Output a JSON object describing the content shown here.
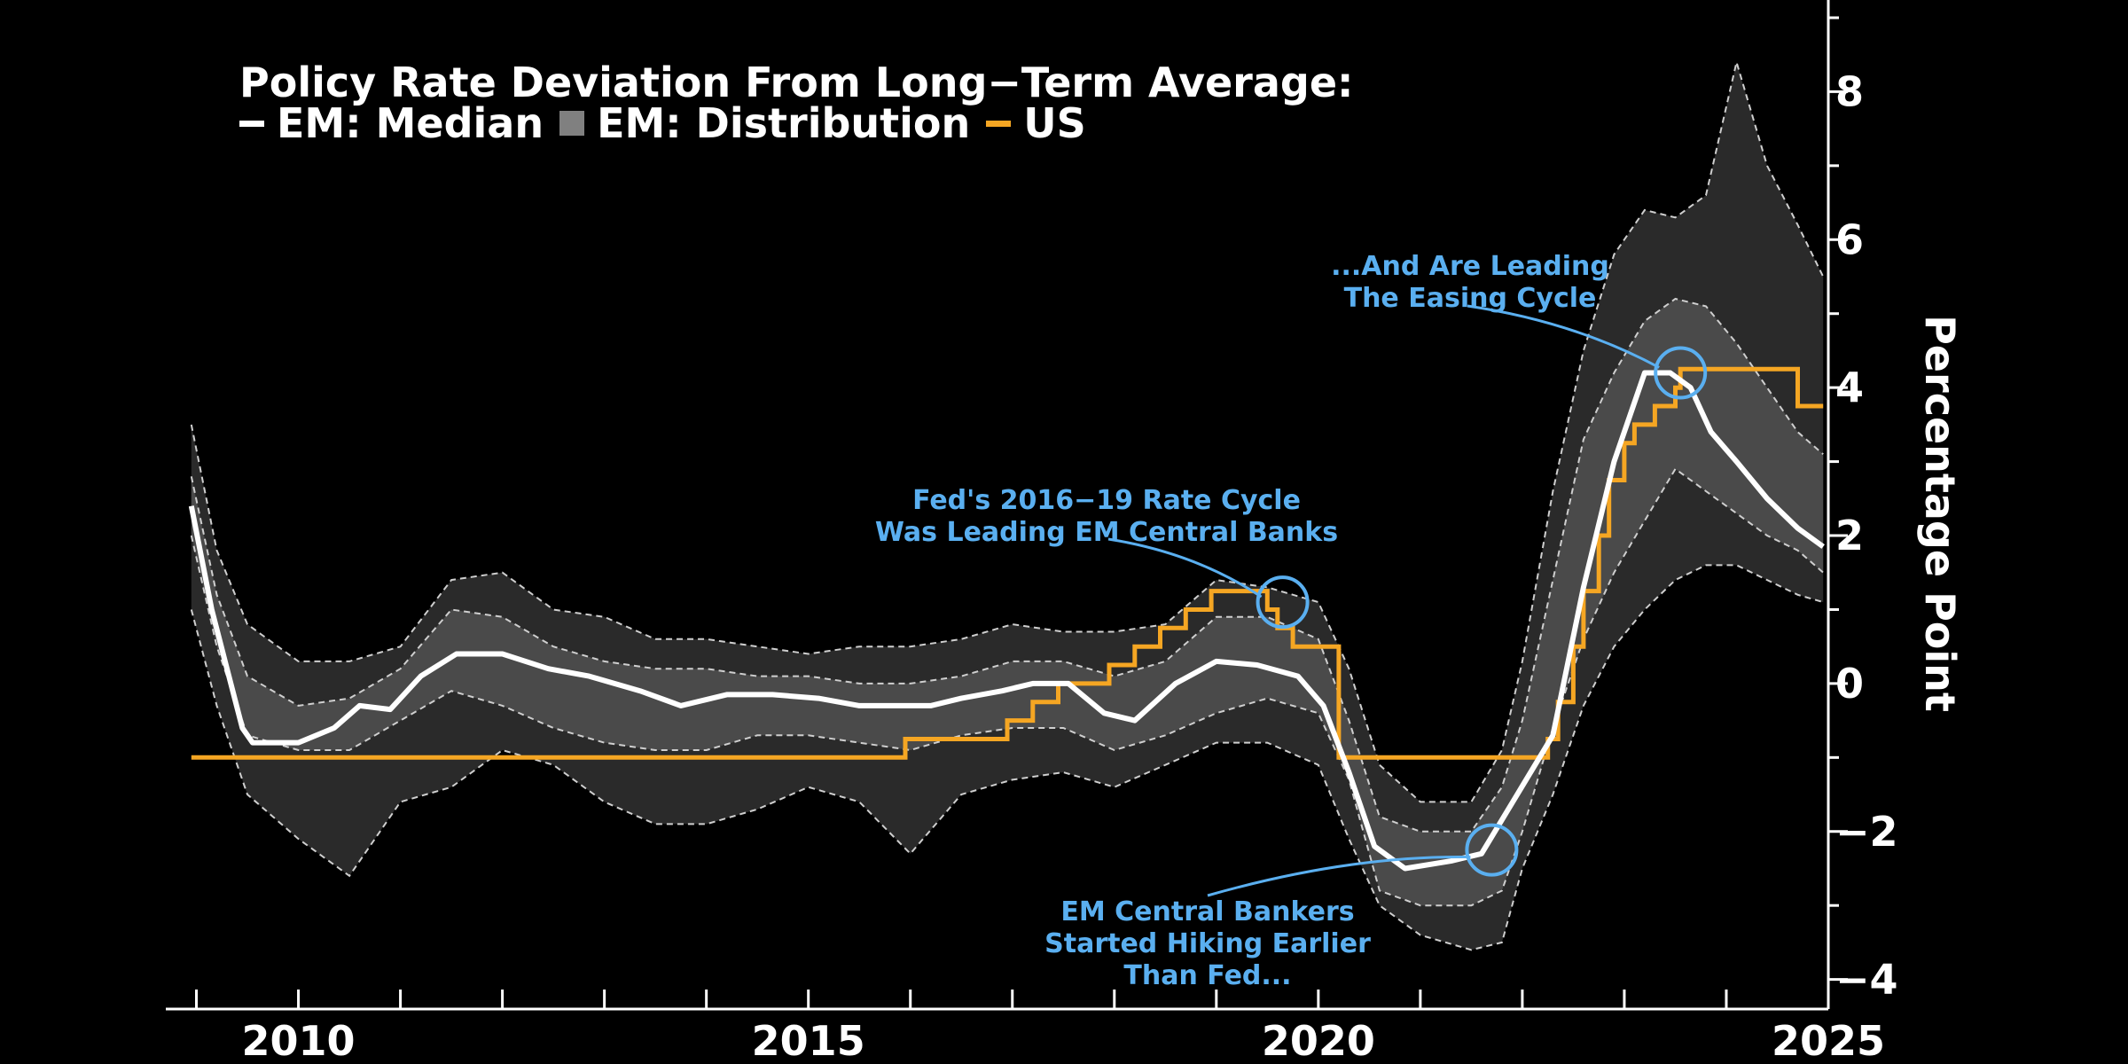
{
  "title": "Policy Rate Deviation From Long−Term Average:",
  "legend": [
    {
      "key": "median",
      "label": "EM: Median",
      "kind": "line",
      "color": "#ffffff"
    },
    {
      "key": "dist",
      "label": "EM: Distribution",
      "kind": "box",
      "color": "#808080"
    },
    {
      "key": "us",
      "label": "US",
      "kind": "line",
      "color": "#f5a623"
    }
  ],
  "colors": {
    "median": "#ffffff",
    "us": "#f5a623",
    "band_outer": "#2a2a2a",
    "band_inner": "#4a4a4a",
    "annotation": "#5aaff0",
    "axis": "#ffffff"
  },
  "chart_data": {
    "type": "area",
    "title": "Policy Rate Deviation From Long−Term Average:",
    "xlabel": "",
    "ylabel": "Percentage Point",
    "xlim": [
      2008.7,
      2025.0
    ],
    "ylim": [
      -4.4,
      9.0
    ],
    "x_ticks": [
      2010,
      2015,
      2020,
      2025
    ],
    "x_tick_labels": [
      "2010",
      "2015",
      "2020",
      "2025"
    ],
    "y_ticks": [
      8,
      6,
      4,
      2,
      0,
      -2,
      -4
    ],
    "y_tick_labels": [
      "8",
      "6",
      "4",
      "2",
      "0",
      "−2",
      "−4"
    ],
    "series": [
      {
        "name": "EM: Median",
        "type": "line",
        "x": [
          2008.95,
          2009.15,
          2009.3,
          2009.45,
          2009.55,
          2010.0,
          2010.35,
          2010.6,
          2010.9,
          2011.2,
          2011.55,
          2012.0,
          2012.45,
          2012.85,
          2013.35,
          2013.75,
          2014.2,
          2014.65,
          2015.1,
          2015.5,
          2015.9,
          2016.2,
          2016.5,
          2016.9,
          2017.2,
          2017.55,
          2017.9,
          2018.2,
          2018.6,
          2019.0,
          2019.4,
          2019.8,
          2020.05,
          2020.3,
          2020.55,
          2020.85,
          2021.3,
          2021.6,
          2021.95,
          2022.3,
          2022.6,
          2022.9,
          2023.2,
          2023.45,
          2023.65,
          2023.85,
          2024.1,
          2024.4,
          2024.7,
          2024.95
        ],
        "values": [
          2.4,
          1.0,
          0.2,
          -0.6,
          -0.8,
          -0.8,
          -0.6,
          -0.3,
          -0.35,
          0.1,
          0.4,
          0.4,
          0.2,
          0.1,
          -0.1,
          -0.3,
          -0.15,
          -0.15,
          -0.2,
          -0.3,
          -0.3,
          -0.3,
          -0.2,
          -0.1,
          0.0,
          0.0,
          -0.4,
          -0.5,
          0.0,
          0.3,
          0.25,
          0.1,
          -0.3,
          -1.2,
          -2.2,
          -2.5,
          -2.4,
          -2.3,
          -1.5,
          -0.7,
          1.3,
          3.0,
          4.2,
          4.2,
          4.0,
          3.4,
          3.0,
          2.5,
          2.1,
          1.85
        ]
      },
      {
        "name": "US",
        "type": "step",
        "x": [
          2008.95,
          2015.95,
          2016.95,
          2017.2,
          2017.45,
          2017.95,
          2018.2,
          2018.45,
          2018.7,
          2018.95,
          2019.5,
          2019.6,
          2019.75,
          2020.2,
          2021.95,
          2022.25,
          2022.35,
          2022.5,
          2022.6,
          2022.75,
          2022.85,
          2023.0,
          2023.1,
          2023.3,
          2023.5,
          2023.55,
          2024.7,
          2024.95
        ],
        "values": [
          -1.0,
          -0.75,
          -0.5,
          -0.25,
          0.0,
          0.25,
          0.5,
          0.75,
          1.0,
          1.25,
          1.0,
          0.75,
          0.5,
          -1.0,
          -1.0,
          -0.75,
          -0.25,
          0.5,
          1.25,
          2.0,
          2.75,
          3.25,
          3.5,
          3.75,
          4.0,
          4.25,
          3.75,
          3.75
        ]
      },
      {
        "name": "EM: Distribution",
        "type": "band",
        "x": [
          2008.95,
          2009.2,
          2009.5,
          2010.0,
          2010.5,
          2011.0,
          2011.5,
          2012.0,
          2012.5,
          2013.0,
          2013.5,
          2014.0,
          2014.5,
          2015.0,
          2015.5,
          2016.0,
          2016.5,
          2017.0,
          2017.5,
          2018.0,
          2018.5,
          2019.0,
          2019.5,
          2020.0,
          2020.3,
          2020.6,
          2021.0,
          2021.5,
          2021.8,
          2022.0,
          2022.3,
          2022.6,
          2022.9,
          2023.2,
          2023.5,
          2023.8,
          2024.1,
          2024.4,
          2024.7,
          2024.95
        ],
        "p10": [
          1.0,
          -0.3,
          -1.5,
          -2.1,
          -2.6,
          -1.6,
          -1.4,
          -0.9,
          -1.1,
          -1.6,
          -1.9,
          -1.9,
          -1.7,
          -1.4,
          -1.6,
          -2.3,
          -1.5,
          -1.3,
          -1.2,
          -1.4,
          -1.1,
          -0.8,
          -0.8,
          -1.1,
          -2.1,
          -3.0,
          -3.4,
          -3.6,
          -3.5,
          -2.5,
          -1.5,
          -0.3,
          0.5,
          1.0,
          1.4,
          1.6,
          1.6,
          1.4,
          1.2,
          1.1
        ],
        "p25": [
          2.0,
          0.5,
          -0.7,
          -0.9,
          -0.9,
          -0.5,
          -0.1,
          -0.3,
          -0.6,
          -0.8,
          -0.9,
          -0.9,
          -0.7,
          -0.7,
          -0.8,
          -0.9,
          -0.7,
          -0.6,
          -0.6,
          -0.9,
          -0.7,
          -0.4,
          -0.2,
          -0.4,
          -1.3,
          -2.8,
          -3.0,
          -3.0,
          -2.8,
          -2.0,
          -0.6,
          0.6,
          1.5,
          2.2,
          2.9,
          2.6,
          2.3,
          2.0,
          1.8,
          1.5
        ],
        "p75": [
          2.8,
          1.2,
          0.1,
          -0.3,
          -0.2,
          0.2,
          1.0,
          0.9,
          0.5,
          0.3,
          0.2,
          0.2,
          0.1,
          0.1,
          0.0,
          0.0,
          0.1,
          0.3,
          0.3,
          0.1,
          0.3,
          0.9,
          0.9,
          0.6,
          -0.5,
          -1.8,
          -2.0,
          -2.0,
          -1.4,
          -0.5,
          1.4,
          3.3,
          4.2,
          4.9,
          5.2,
          5.1,
          4.6,
          4.0,
          3.4,
          3.1
        ],
        "p90": [
          3.5,
          1.8,
          0.8,
          0.3,
          0.3,
          0.5,
          1.4,
          1.5,
          1.0,
          0.9,
          0.6,
          0.6,
          0.5,
          0.4,
          0.5,
          0.5,
          0.6,
          0.8,
          0.7,
          0.7,
          0.8,
          1.4,
          1.3,
          1.1,
          0.2,
          -1.1,
          -1.6,
          -1.6,
          -0.9,
          0.3,
          2.6,
          4.5,
          5.8,
          6.4,
          6.3,
          6.6,
          8.4,
          7.0,
          6.2,
          5.5
        ]
      }
    ],
    "annotations": [
      {
        "lines": [
          "...And Are Leading",
          "The Easing Cycle"
        ],
        "target_x": 2023.55,
        "target_y": 4.2
      },
      {
        "lines": [
          "Fed's 2016−19 Rate Cycle",
          "Was Leading EM Central Banks"
        ],
        "target_x": 2019.65,
        "target_y": 1.1
      },
      {
        "lines": [
          "EM Central Bankers",
          "Started Hiking Earlier",
          "Than Fed..."
        ],
        "target_x": 2021.7,
        "target_y": -2.25
      }
    ]
  }
}
